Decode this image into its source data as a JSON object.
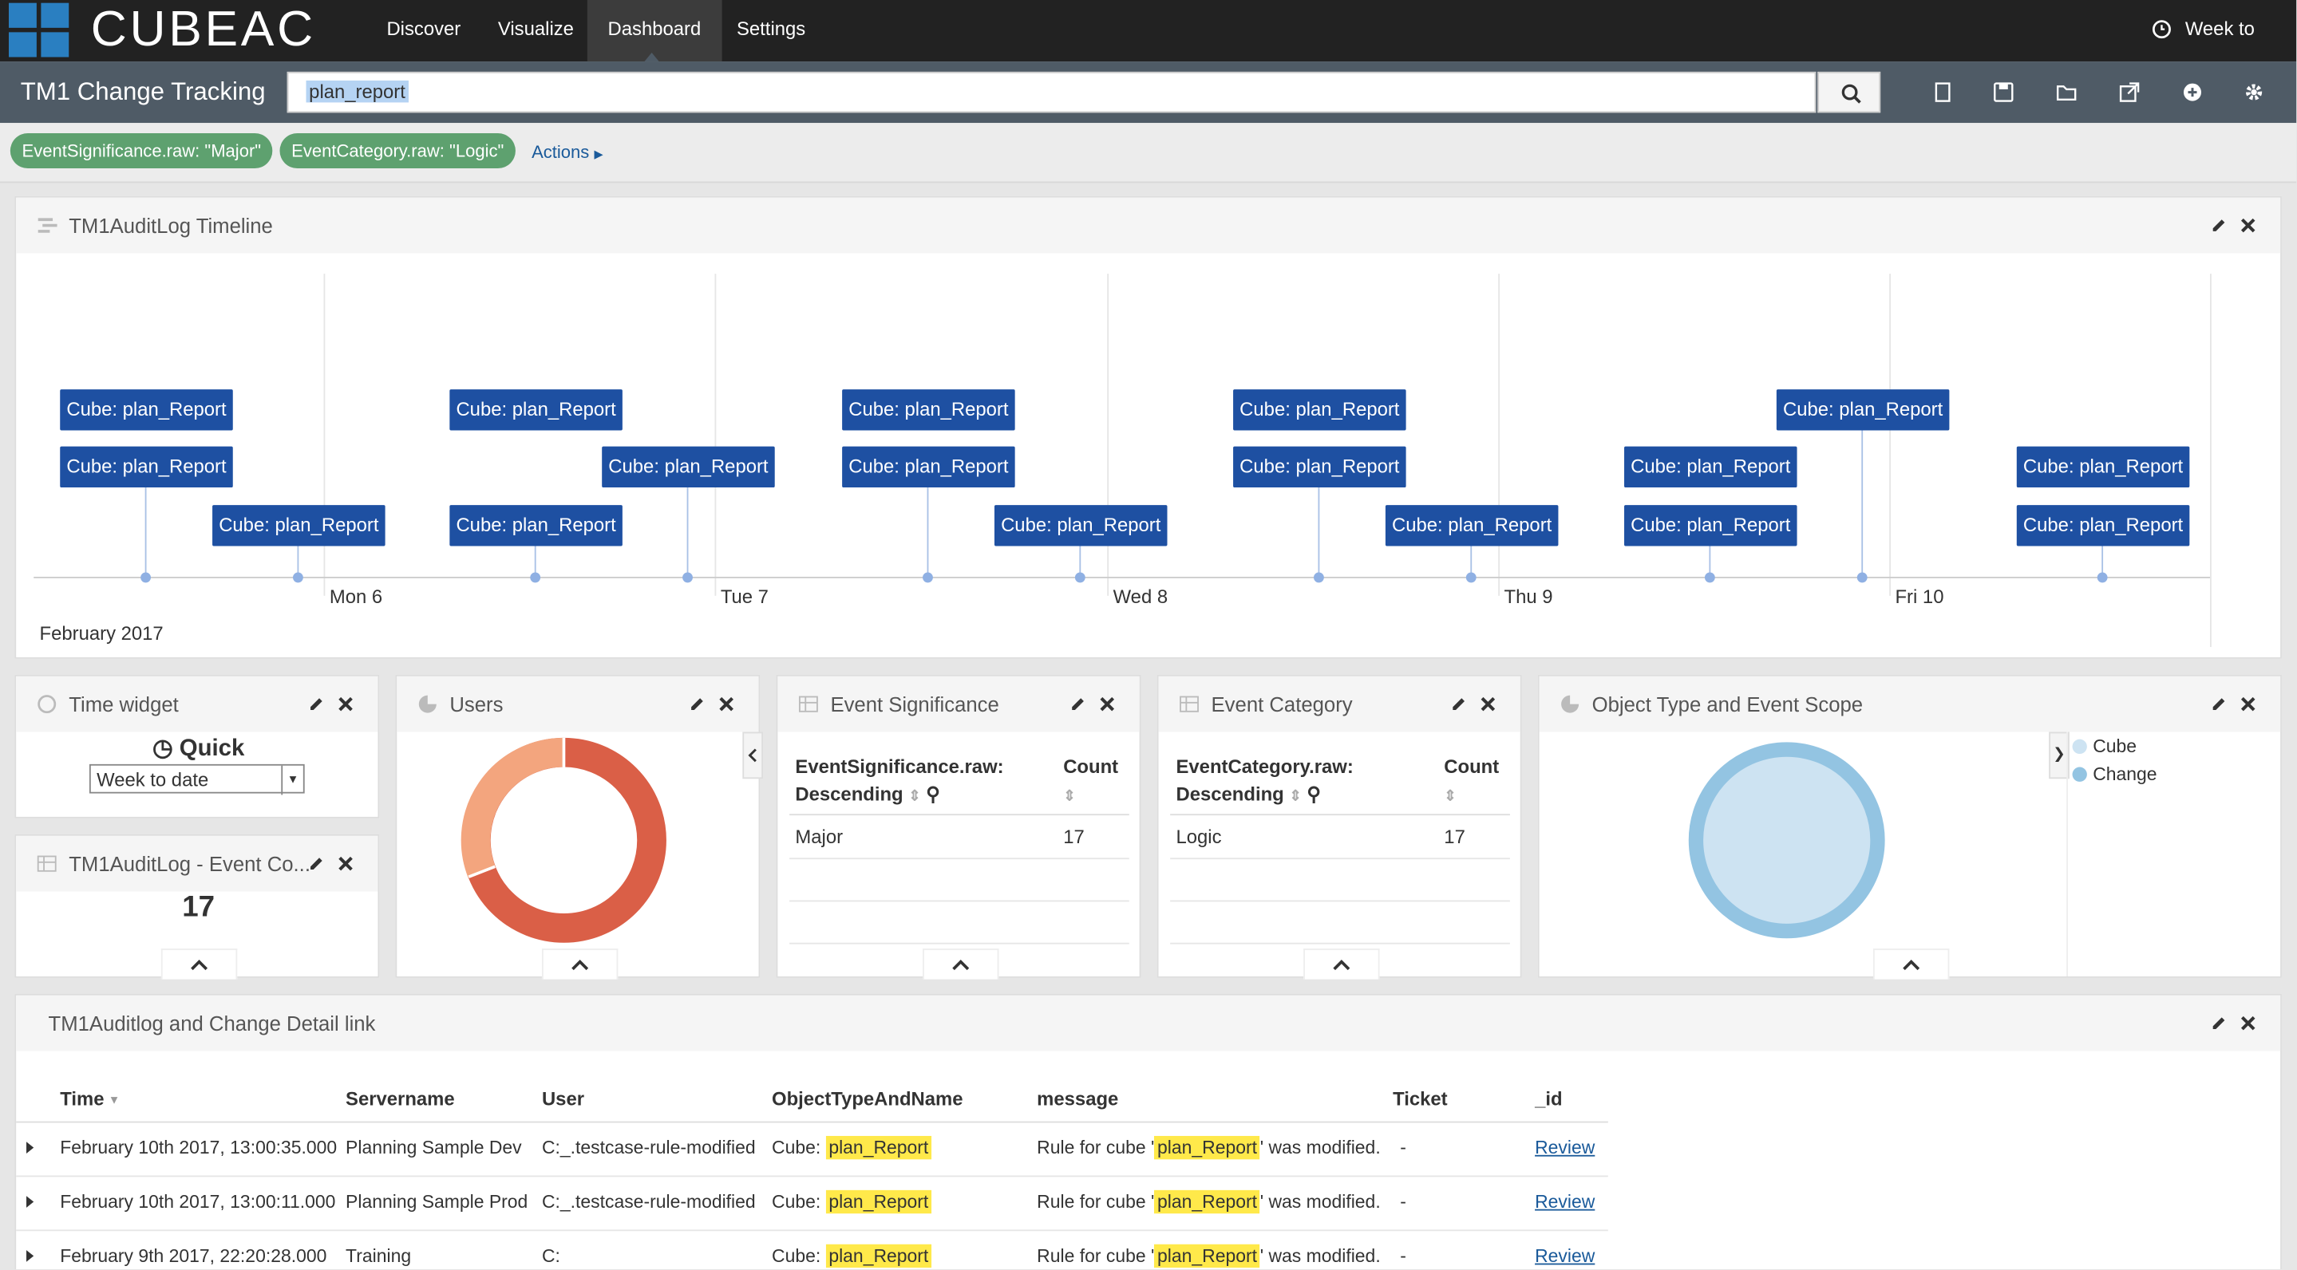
{
  "nav": {
    "brand": "CUBEAC",
    "items": [
      "Discover",
      "Visualize",
      "Dashboard",
      "Settings"
    ],
    "time": "Week to date"
  },
  "toolbar": {
    "title": "TM1 Change Tracking",
    "query": "plan_report"
  },
  "filters": [
    "EventSignificance.raw: \"Major\"",
    "EventCategory.raw: \"Logic\""
  ],
  "actions": "Actions",
  "timeline": {
    "title": "TM1AuditLog Timeline",
    "days": [
      "Mon 6",
      "Tue 7",
      "Wed 8",
      "Thu 9",
      "Fri 10"
    ],
    "month": "February 2017",
    "events": [
      "Cube: plan_Report",
      "Cube: plan_Report",
      "Cube: plan_Report",
      "Cube: plan_Report",
      "Cube: plan_Report",
      "Cube: plan_Report",
      "Cube: plan_Report",
      "Cube: plan_Report",
      "Cube: plan_Report",
      "Cube: plan_Report",
      "Cube: plan_Report",
      "Cube: plan_Report",
      "Cube: plan_Report",
      "Cube: plan_Report",
      "Cube: plan_Report",
      "Cube: plan_Report",
      "Cube: plan_Report"
    ]
  },
  "time_widget": {
    "title": "Time widget",
    "label": "Quick",
    "select": "Week to date"
  },
  "count_widget": {
    "title": "TM1AuditLog - Event Co...",
    "value": 17
  },
  "users": {
    "title": "Users"
  },
  "significance": {
    "title": "Event Significance",
    "headers": [
      "EventSignificance.raw:",
      "Descending",
      "Count"
    ],
    "rows": [
      [
        "Major",
        17
      ]
    ]
  },
  "category": {
    "title": "Event Category",
    "headers": [
      "EventCategory.raw:",
      "Descending",
      "Count"
    ],
    "rows": [
      [
        "Logic",
        17
      ]
    ]
  },
  "object_type": {
    "title": "Object Type and Event Scope",
    "legend": [
      "Cube",
      "Change"
    ]
  },
  "detail": {
    "title": "TM1Auditlog and Change Detail link",
    "columns": [
      "Time",
      "Servername",
      "User",
      "ObjectTypeAndName",
      "message",
      "Ticket",
      "_id"
    ],
    "rows": [
      {
        "time": "February 10th 2017, 13:00:35.000",
        "server": "Planning Sample Dev",
        "user": "C:_.testcase-rule-modified",
        "obj_prefix": "Cube:",
        "obj": "plan_Report",
        "msg_pre": "Rule for cube '",
        "msg_hl": "plan_Report",
        "msg_post": "' was modified.",
        "ticket": "-",
        "id": "Review"
      },
      {
        "time": "February 10th 2017, 13:00:11.000",
        "server": "Planning Sample Prod",
        "user": "C:_.testcase-rule-modified",
        "obj_prefix": "Cube:",
        "obj": "plan_Report",
        "msg_pre": "Rule for cube '",
        "msg_hl": "plan_Report",
        "msg_post": "' was modified.",
        "ticket": "-",
        "id": "Review"
      },
      {
        "time": "February 9th 2017, 22:20:28.000",
        "server": "Training",
        "user": "C:",
        "obj_prefix": "Cube:",
        "obj": "plan_Report",
        "msg_pre": "Rule for cube '",
        "msg_hl": "plan_Report",
        "msg_post": "' was modified.",
        "ticket": "-",
        "id": "Review"
      }
    ]
  }
}
